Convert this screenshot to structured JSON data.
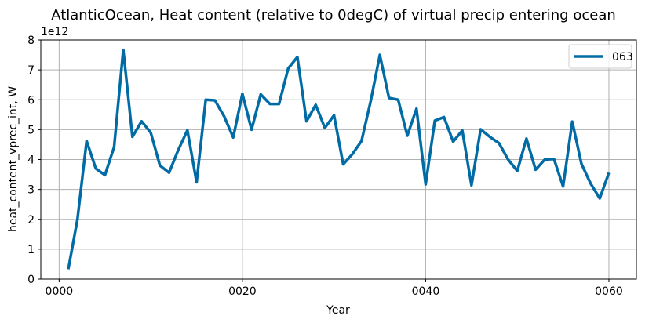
{
  "chart_data": {
    "type": "line",
    "title": "AtlanticOcean, Heat content (relative to 0degC) of virtual precip entering ocean",
    "xlabel": "Year",
    "ylabel": "heat_content_vprec_int, W",
    "y_offset_text": "1e12",
    "y_scale": 1000000000000.0,
    "xlim": [
      -2,
      63
    ],
    "ylim": [
      0,
      8
    ],
    "x_ticks": [
      0,
      20,
      40,
      60
    ],
    "x_tick_labels": [
      "0000",
      "0020",
      "0040",
      "0060"
    ],
    "y_ticks": [
      0,
      1,
      2,
      3,
      4,
      5,
      6,
      7,
      8
    ],
    "y_tick_labels": [
      "0",
      "1",
      "2",
      "3",
      "4",
      "5",
      "6",
      "7",
      "8"
    ],
    "grid": true,
    "legend_position": "top-right",
    "series": [
      {
        "name": "063",
        "color": "#006ba4",
        "x": [
          1,
          2,
          3,
          4,
          5,
          6,
          7,
          8,
          9,
          10,
          11,
          12,
          13,
          14,
          15,
          16,
          17,
          18,
          19,
          20,
          21,
          22,
          23,
          24,
          25,
          26,
          27,
          28,
          29,
          30,
          31,
          32,
          33,
          34,
          35,
          36,
          37,
          38,
          39,
          40,
          41,
          42,
          43,
          44,
          45,
          46,
          47,
          48,
          49,
          50,
          51,
          52,
          53,
          54,
          55,
          56,
          57,
          58,
          59,
          60
        ],
        "values": [
          0.33,
          2.0,
          4.62,
          3.7,
          3.48,
          4.42,
          7.67,
          4.76,
          5.28,
          4.9,
          3.8,
          3.56,
          4.32,
          4.98,
          3.24,
          6.0,
          5.98,
          5.45,
          4.74,
          6.2,
          5.0,
          6.18,
          5.86,
          5.86,
          7.05,
          7.43,
          5.28,
          5.83,
          5.06,
          5.48,
          3.84,
          4.18,
          4.62,
          5.95,
          7.5,
          6.06,
          6.0,
          4.8,
          5.7,
          3.17,
          5.3,
          5.42,
          4.6,
          4.97,
          3.14,
          5.01,
          4.76,
          4.55,
          4.0,
          3.62,
          4.7,
          3.66,
          4.0,
          4.02,
          3.1,
          5.27,
          3.86,
          3.2,
          2.7,
          3.56
        ]
      }
    ]
  }
}
